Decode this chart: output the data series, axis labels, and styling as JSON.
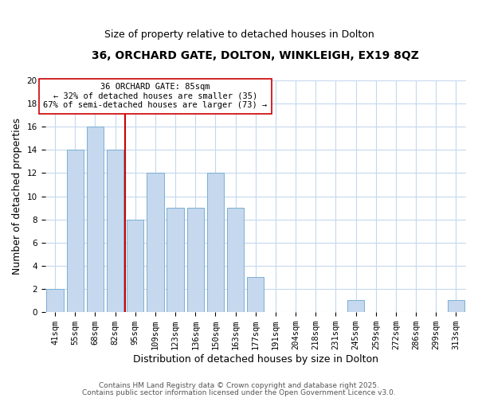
{
  "title_line1": "36, ORCHARD GATE, DOLTON, WINKLEIGH, EX19 8QZ",
  "title_line2": "Size of property relative to detached houses in Dolton",
  "xlabel": "Distribution of detached houses by size in Dolton",
  "ylabel": "Number of detached properties",
  "categories": [
    "41sqm",
    "55sqm",
    "68sqm",
    "82sqm",
    "95sqm",
    "109sqm",
    "123sqm",
    "136sqm",
    "150sqm",
    "163sqm",
    "177sqm",
    "191sqm",
    "204sqm",
    "218sqm",
    "231sqm",
    "245sqm",
    "259sqm",
    "272sqm",
    "286sqm",
    "299sqm",
    "313sqm"
  ],
  "values": [
    2,
    14,
    16,
    14,
    8,
    12,
    9,
    9,
    12,
    9,
    3,
    0,
    0,
    0,
    0,
    1,
    0,
    0,
    0,
    0,
    1
  ],
  "bar_color": "#c5d8ed",
  "bar_edge_color": "#7bafd4",
  "vline_x_index": 3,
  "vline_color": "#cc0000",
  "annotation_title": "36 ORCHARD GATE: 85sqm",
  "annotation_line1": "← 32% of detached houses are smaller (35)",
  "annotation_line2": "67% of semi-detached houses are larger (73) →",
  "annotation_box_edge": "#cc0000",
  "annotation_box_face": "#ffffff",
  "ylim": [
    0,
    20
  ],
  "yticks": [
    0,
    2,
    4,
    6,
    8,
    10,
    12,
    14,
    16,
    18,
    20
  ],
  "footer_line1": "Contains HM Land Registry data © Crown copyright and database right 2025.",
  "footer_line2": "Contains public sector information licensed under the Open Government Licence v3.0.",
  "bg_color": "#ffffff",
  "grid_color": "#c5d8ed",
  "title_fontsize": 10,
  "subtitle_fontsize": 9,
  "axis_label_fontsize": 9,
  "tick_fontsize": 7.5,
  "annotation_fontsize": 7.5,
  "footer_fontsize": 6.5
}
